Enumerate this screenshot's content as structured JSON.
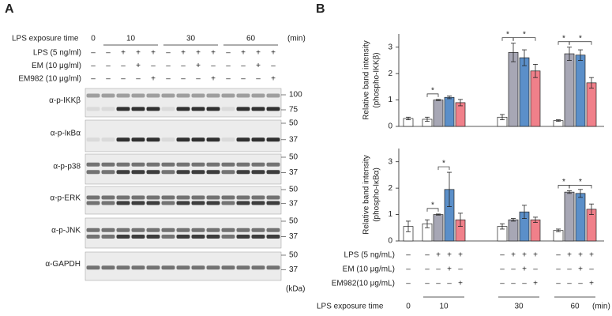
{
  "panel_a": {
    "label": "A",
    "exposure_label": "LPS exposure time",
    "times": [
      "0",
      "10",
      "30",
      "60"
    ],
    "unit": "(min)",
    "treatments": [
      {
        "name": "LPS (5 ng/ml)",
        "signs": [
          "–",
          "–",
          "+",
          "+",
          "+",
          "–",
          "+",
          "+",
          "+",
          "–",
          "+",
          "+",
          "+"
        ]
      },
      {
        "name": "EM (10 μg/ml)",
        "signs": [
          "–",
          "–",
          "–",
          "+",
          "–",
          "–",
          "–",
          "+",
          "–",
          "–",
          "–",
          "+",
          "–"
        ]
      },
      {
        "name": "EM982 (10 μg/ml)",
        "signs": [
          "–",
          "–",
          "–",
          "–",
          "+",
          "–",
          "–",
          "–",
          "+",
          "–",
          "–",
          "–",
          "+"
        ]
      }
    ],
    "blots": [
      {
        "antibody": "α-p-IKKβ",
        "markers": [
          "100",
          "75"
        ]
      },
      {
        "antibody": "α-p-IκBα",
        "markers": [
          "50",
          "37"
        ]
      },
      {
        "antibody": "α-p-p38",
        "markers": [
          "50",
          "37"
        ]
      },
      {
        "antibody": "α-p-ERK",
        "markers": [
          "50",
          "37"
        ]
      },
      {
        "antibody": "α-p-JNK",
        "markers": [
          "50",
          "37"
        ]
      },
      {
        "antibody": "α-GAPDH",
        "markers": [
          "50",
          "37"
        ]
      }
    ],
    "kda": "(kDa)"
  },
  "panel_b": {
    "label": "B",
    "exposure_label": "LPS exposure time",
    "times": [
      "0",
      "10",
      "30",
      "60"
    ],
    "unit": "(min)",
    "treatments": [
      {
        "name": "LPS (5 ng/mL)",
        "signs": [
          "–",
          "–",
          "+",
          "+",
          "+",
          "–",
          "+",
          "+",
          "+",
          "–",
          "+",
          "+",
          "+"
        ]
      },
      {
        "name": "EM (10 μg/mL)",
        "signs": [
          "–",
          "–",
          "–",
          "+",
          "–",
          "–",
          "–",
          "+",
          "–",
          "–",
          "–",
          "+",
          "–"
        ]
      },
      {
        "name": "EM982(10 μg/mL)",
        "signs": [
          "–",
          "–",
          "–",
          "–",
          "+",
          "–",
          "–",
          "–",
          "+",
          "–",
          "–",
          "–",
          "+"
        ]
      }
    ]
  },
  "chart_data": [
    {
      "type": "bar",
      "ylabel": [
        "Relative band intensity",
        "(phospho-IKKβ)"
      ],
      "values": [
        0.3,
        0.27,
        1.0,
        1.1,
        0.9,
        0.35,
        2.8,
        2.6,
        2.1,
        0.22,
        2.75,
        2.7,
        1.65
      ],
      "errors": [
        0.05,
        0.08,
        0.02,
        0.05,
        0.12,
        0.1,
        0.35,
        0.3,
        0.25,
        0.03,
        0.25,
        0.2,
        0.2
      ],
      "colors": [
        "#ffffff",
        "#ffffff",
        "#a7a7b5",
        "#5b8fc9",
        "#f0808a",
        "#ffffff",
        "#a7a7b5",
        "#5b8fc9",
        "#f0808a",
        "#ffffff",
        "#a7a7b5",
        "#5b8fc9",
        "#f0808a"
      ],
      "ylim": [
        0,
        3.5
      ],
      "yticks": [
        0,
        1,
        2,
        3
      ],
      "significance": [
        {
          "label": "*",
          "bars": [
            1,
            2
          ]
        },
        {
          "label": "*",
          "bars": [
            5,
            6
          ]
        },
        {
          "label": "*",
          "bars": [
            6,
            8
          ]
        },
        {
          "label": "*",
          "bars": [
            9,
            10
          ]
        },
        {
          "label": "*",
          "bars": [
            10,
            12
          ]
        }
      ]
    },
    {
      "type": "bar",
      "ylabel": [
        "Relative band intensity",
        "(phospho-IκBα)"
      ],
      "values": [
        0.55,
        0.65,
        1.0,
        1.95,
        0.8,
        0.55,
        0.8,
        1.1,
        0.8,
        0.4,
        1.85,
        1.8,
        1.2
      ],
      "errors": [
        0.2,
        0.15,
        0.02,
        0.65,
        0.25,
        0.1,
        0.05,
        0.25,
        0.1,
        0.05,
        0.05,
        0.15,
        0.2
      ],
      "colors": [
        "#ffffff",
        "#ffffff",
        "#a7a7b5",
        "#5b8fc9",
        "#f0808a",
        "#ffffff",
        "#a7a7b5",
        "#5b8fc9",
        "#f0808a",
        "#ffffff",
        "#a7a7b5",
        "#5b8fc9",
        "#f0808a"
      ],
      "ylim": [
        0,
        3.5
      ],
      "yticks": [
        0,
        1,
        2,
        3
      ],
      "significance": [
        {
          "label": "*",
          "bars": [
            1,
            2
          ]
        },
        {
          "label": "*",
          "bars": [
            2,
            3
          ]
        },
        {
          "label": "*",
          "bars": [
            9,
            10
          ]
        },
        {
          "label": "*",
          "bars": [
            10,
            12
          ]
        }
      ]
    }
  ]
}
